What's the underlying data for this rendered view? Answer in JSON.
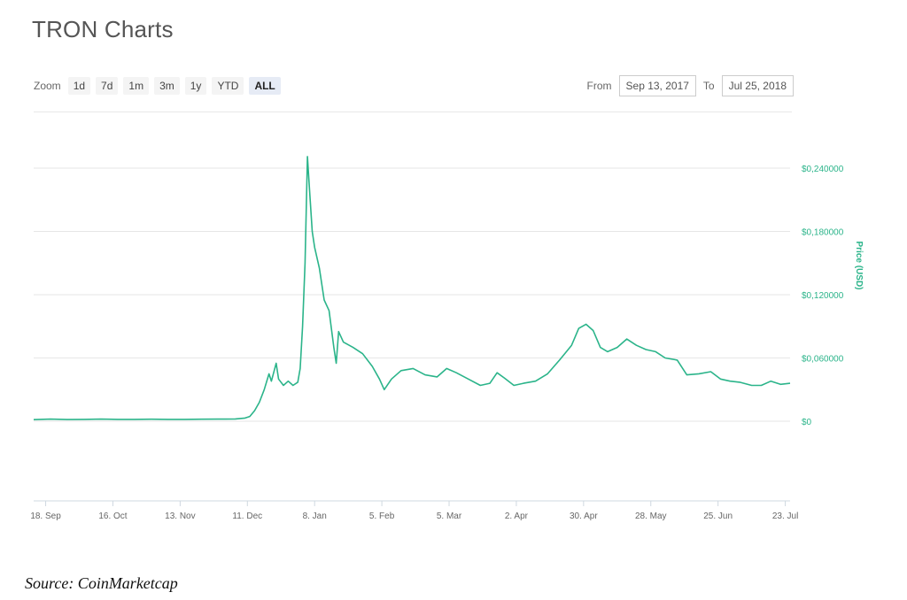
{
  "header": {
    "title": "TRON Charts"
  },
  "zoom": {
    "label": "Zoom",
    "buttons": [
      "1d",
      "7d",
      "1m",
      "3m",
      "1y",
      "YTD",
      "ALL"
    ],
    "active": "ALL"
  },
  "range": {
    "from_label": "From",
    "from_value": "Sep 13, 2017",
    "to_label": "To",
    "to_value": "Jul 25, 2018"
  },
  "source": "Source: CoinMarketcap",
  "colors": {
    "line": "#2bb48a",
    "axis_text": "#2bb48a",
    "grid": "#e6e6e6"
  },
  "chart_data": {
    "type": "line",
    "ylabel": "Price (USD)",
    "ylim": [
      0,
      0.26
    ],
    "xlim": [
      "2017-09-13",
      "2018-07-25"
    ],
    "y_ticks": [
      {
        "value": 0,
        "label": "$0"
      },
      {
        "value": 0.06,
        "label": "$0,060000"
      },
      {
        "value": 0.12,
        "label": "$0,120000"
      },
      {
        "value": 0.18,
        "label": "$0,180000"
      },
      {
        "value": 0.24,
        "label": "$0,240000"
      }
    ],
    "x_ticks": [
      {
        "date": "2017-09-18",
        "label": "18. Sep"
      },
      {
        "date": "2017-10-16",
        "label": "16. Oct"
      },
      {
        "date": "2017-11-13",
        "label": "13. Nov"
      },
      {
        "date": "2017-12-11",
        "label": "11. Dec"
      },
      {
        "date": "2018-01-08",
        "label": "8. Jan"
      },
      {
        "date": "2018-02-05",
        "label": "5. Feb"
      },
      {
        "date": "2018-03-05",
        "label": "5. Mar"
      },
      {
        "date": "2018-04-02",
        "label": "2. Apr"
      },
      {
        "date": "2018-04-30",
        "label": "30. Apr"
      },
      {
        "date": "2018-05-28",
        "label": "28. May"
      },
      {
        "date": "2018-06-25",
        "label": "25. Jun"
      },
      {
        "date": "2018-07-23",
        "label": "23. Jul"
      }
    ],
    "series": [
      {
        "points": [
          [
            "2017-09-13",
            0.0015
          ],
          [
            "2017-09-20",
            0.002
          ],
          [
            "2017-09-27",
            0.0016
          ],
          [
            "2017-10-04",
            0.0018
          ],
          [
            "2017-10-11",
            0.002
          ],
          [
            "2017-10-18",
            0.0018
          ],
          [
            "2017-10-25",
            0.0018
          ],
          [
            "2017-11-01",
            0.0019
          ],
          [
            "2017-11-08",
            0.0018
          ],
          [
            "2017-11-15",
            0.0018
          ],
          [
            "2017-11-22",
            0.0019
          ],
          [
            "2017-11-29",
            0.002
          ],
          [
            "2017-12-06",
            0.0022
          ],
          [
            "2017-12-10",
            0.003
          ],
          [
            "2017-12-12",
            0.0045
          ],
          [
            "2017-12-14",
            0.01
          ],
          [
            "2017-12-16",
            0.018
          ],
          [
            "2017-12-18",
            0.03
          ],
          [
            "2017-12-20",
            0.045
          ],
          [
            "2017-12-21",
            0.038
          ],
          [
            "2017-12-23",
            0.055
          ],
          [
            "2017-12-24",
            0.04
          ],
          [
            "2017-12-26",
            0.034
          ],
          [
            "2017-12-28",
            0.038
          ],
          [
            "2017-12-30",
            0.034
          ],
          [
            "2018-01-01",
            0.037
          ],
          [
            "2018-01-02",
            0.05
          ],
          [
            "2018-01-03",
            0.09
          ],
          [
            "2018-01-04",
            0.15
          ],
          [
            "2018-01-05",
            0.251
          ],
          [
            "2018-01-06",
            0.215
          ],
          [
            "2018-01-07",
            0.18
          ],
          [
            "2018-01-08",
            0.165
          ],
          [
            "2018-01-10",
            0.145
          ],
          [
            "2018-01-12",
            0.115
          ],
          [
            "2018-01-14",
            0.105
          ],
          [
            "2018-01-16",
            0.07
          ],
          [
            "2018-01-17",
            0.055
          ],
          [
            "2018-01-18",
            0.085
          ],
          [
            "2018-01-20",
            0.075
          ],
          [
            "2018-01-24",
            0.07
          ],
          [
            "2018-01-28",
            0.064
          ],
          [
            "2018-02-01",
            0.052
          ],
          [
            "2018-02-04",
            0.04
          ],
          [
            "2018-02-06",
            0.03
          ],
          [
            "2018-02-09",
            0.04
          ],
          [
            "2018-02-13",
            0.048
          ],
          [
            "2018-02-18",
            0.05
          ],
          [
            "2018-02-23",
            0.044
          ],
          [
            "2018-02-28",
            0.042
          ],
          [
            "2018-03-04",
            0.05
          ],
          [
            "2018-03-08",
            0.046
          ],
          [
            "2018-03-13",
            0.04
          ],
          [
            "2018-03-18",
            0.034
          ],
          [
            "2018-03-22",
            0.036
          ],
          [
            "2018-03-25",
            0.046
          ],
          [
            "2018-03-28",
            0.041
          ],
          [
            "2018-04-01",
            0.034
          ],
          [
            "2018-04-05",
            0.036
          ],
          [
            "2018-04-10",
            0.038
          ],
          [
            "2018-04-15",
            0.045
          ],
          [
            "2018-04-20",
            0.058
          ],
          [
            "2018-04-25",
            0.072
          ],
          [
            "2018-04-28",
            0.088
          ],
          [
            "2018-05-01",
            0.092
          ],
          [
            "2018-05-04",
            0.086
          ],
          [
            "2018-05-07",
            0.07
          ],
          [
            "2018-05-10",
            0.066
          ],
          [
            "2018-05-14",
            0.07
          ],
          [
            "2018-05-18",
            0.078
          ],
          [
            "2018-05-22",
            0.072
          ],
          [
            "2018-05-26",
            0.068
          ],
          [
            "2018-05-30",
            0.066
          ],
          [
            "2018-06-03",
            0.06
          ],
          [
            "2018-06-08",
            0.058
          ],
          [
            "2018-06-12",
            0.044
          ],
          [
            "2018-06-17",
            0.045
          ],
          [
            "2018-06-22",
            0.047
          ],
          [
            "2018-06-26",
            0.04
          ],
          [
            "2018-06-30",
            0.038
          ],
          [
            "2018-07-04",
            0.037
          ],
          [
            "2018-07-09",
            0.034
          ],
          [
            "2018-07-13",
            0.034
          ],
          [
            "2018-07-17",
            0.038
          ],
          [
            "2018-07-21",
            0.035
          ],
          [
            "2018-07-25",
            0.036
          ]
        ]
      }
    ]
  }
}
